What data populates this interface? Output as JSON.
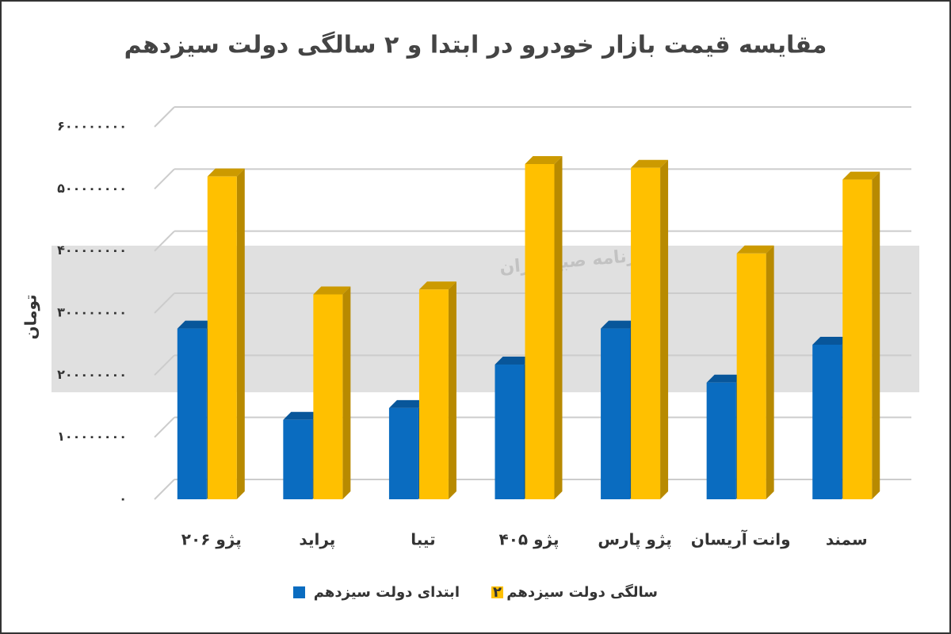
{
  "chart_data": {
    "type": "bar3d",
    "title": "مقایسه قیمت بازار خودرو در ابتدا و ۲ سالگی دولت سیزدهم",
    "y_label": "تومان",
    "watermark": "روزنامه صبح ایران",
    "categories": [
      "پژو ۲۰۶",
      "پراید",
      "تیبا",
      "پژو ۴۰۵",
      "پژو پارس",
      "وانت آریسان",
      "سمند"
    ],
    "series": [
      {
        "name": "ابتدای دولت سیزدهم",
        "color": "#0a6cc0",
        "values": [
          275000000,
          128000000,
          147000000,
          217000000,
          275000000,
          188000000,
          249000000
        ]
      },
      {
        "name": "۲ سالگی دولت سیزدهم",
        "color": "#ffc000",
        "values": [
          520000000,
          330000000,
          338000000,
          540000000,
          534000000,
          396000000,
          515000000
        ]
      }
    ],
    "ylim": [
      0,
      600000000
    ],
    "yticks": [
      {
        "value": 0,
        "label": "۰"
      },
      {
        "value": 100000000,
        "label": "۱۰۰۰۰۰۰۰۰"
      },
      {
        "value": 200000000,
        "label": "۲۰۰۰۰۰۰۰۰"
      },
      {
        "value": 300000000,
        "label": "۳۰۰۰۰۰۰۰۰"
      },
      {
        "value": 400000000,
        "label": "۴۰۰۰۰۰۰۰۰"
      },
      {
        "value": 500000000,
        "label": "۵۰۰۰۰۰۰۰۰"
      },
      {
        "value": 600000000,
        "label": "۶۰۰۰۰۰۰۰۰"
      }
    ],
    "grid": true
  }
}
